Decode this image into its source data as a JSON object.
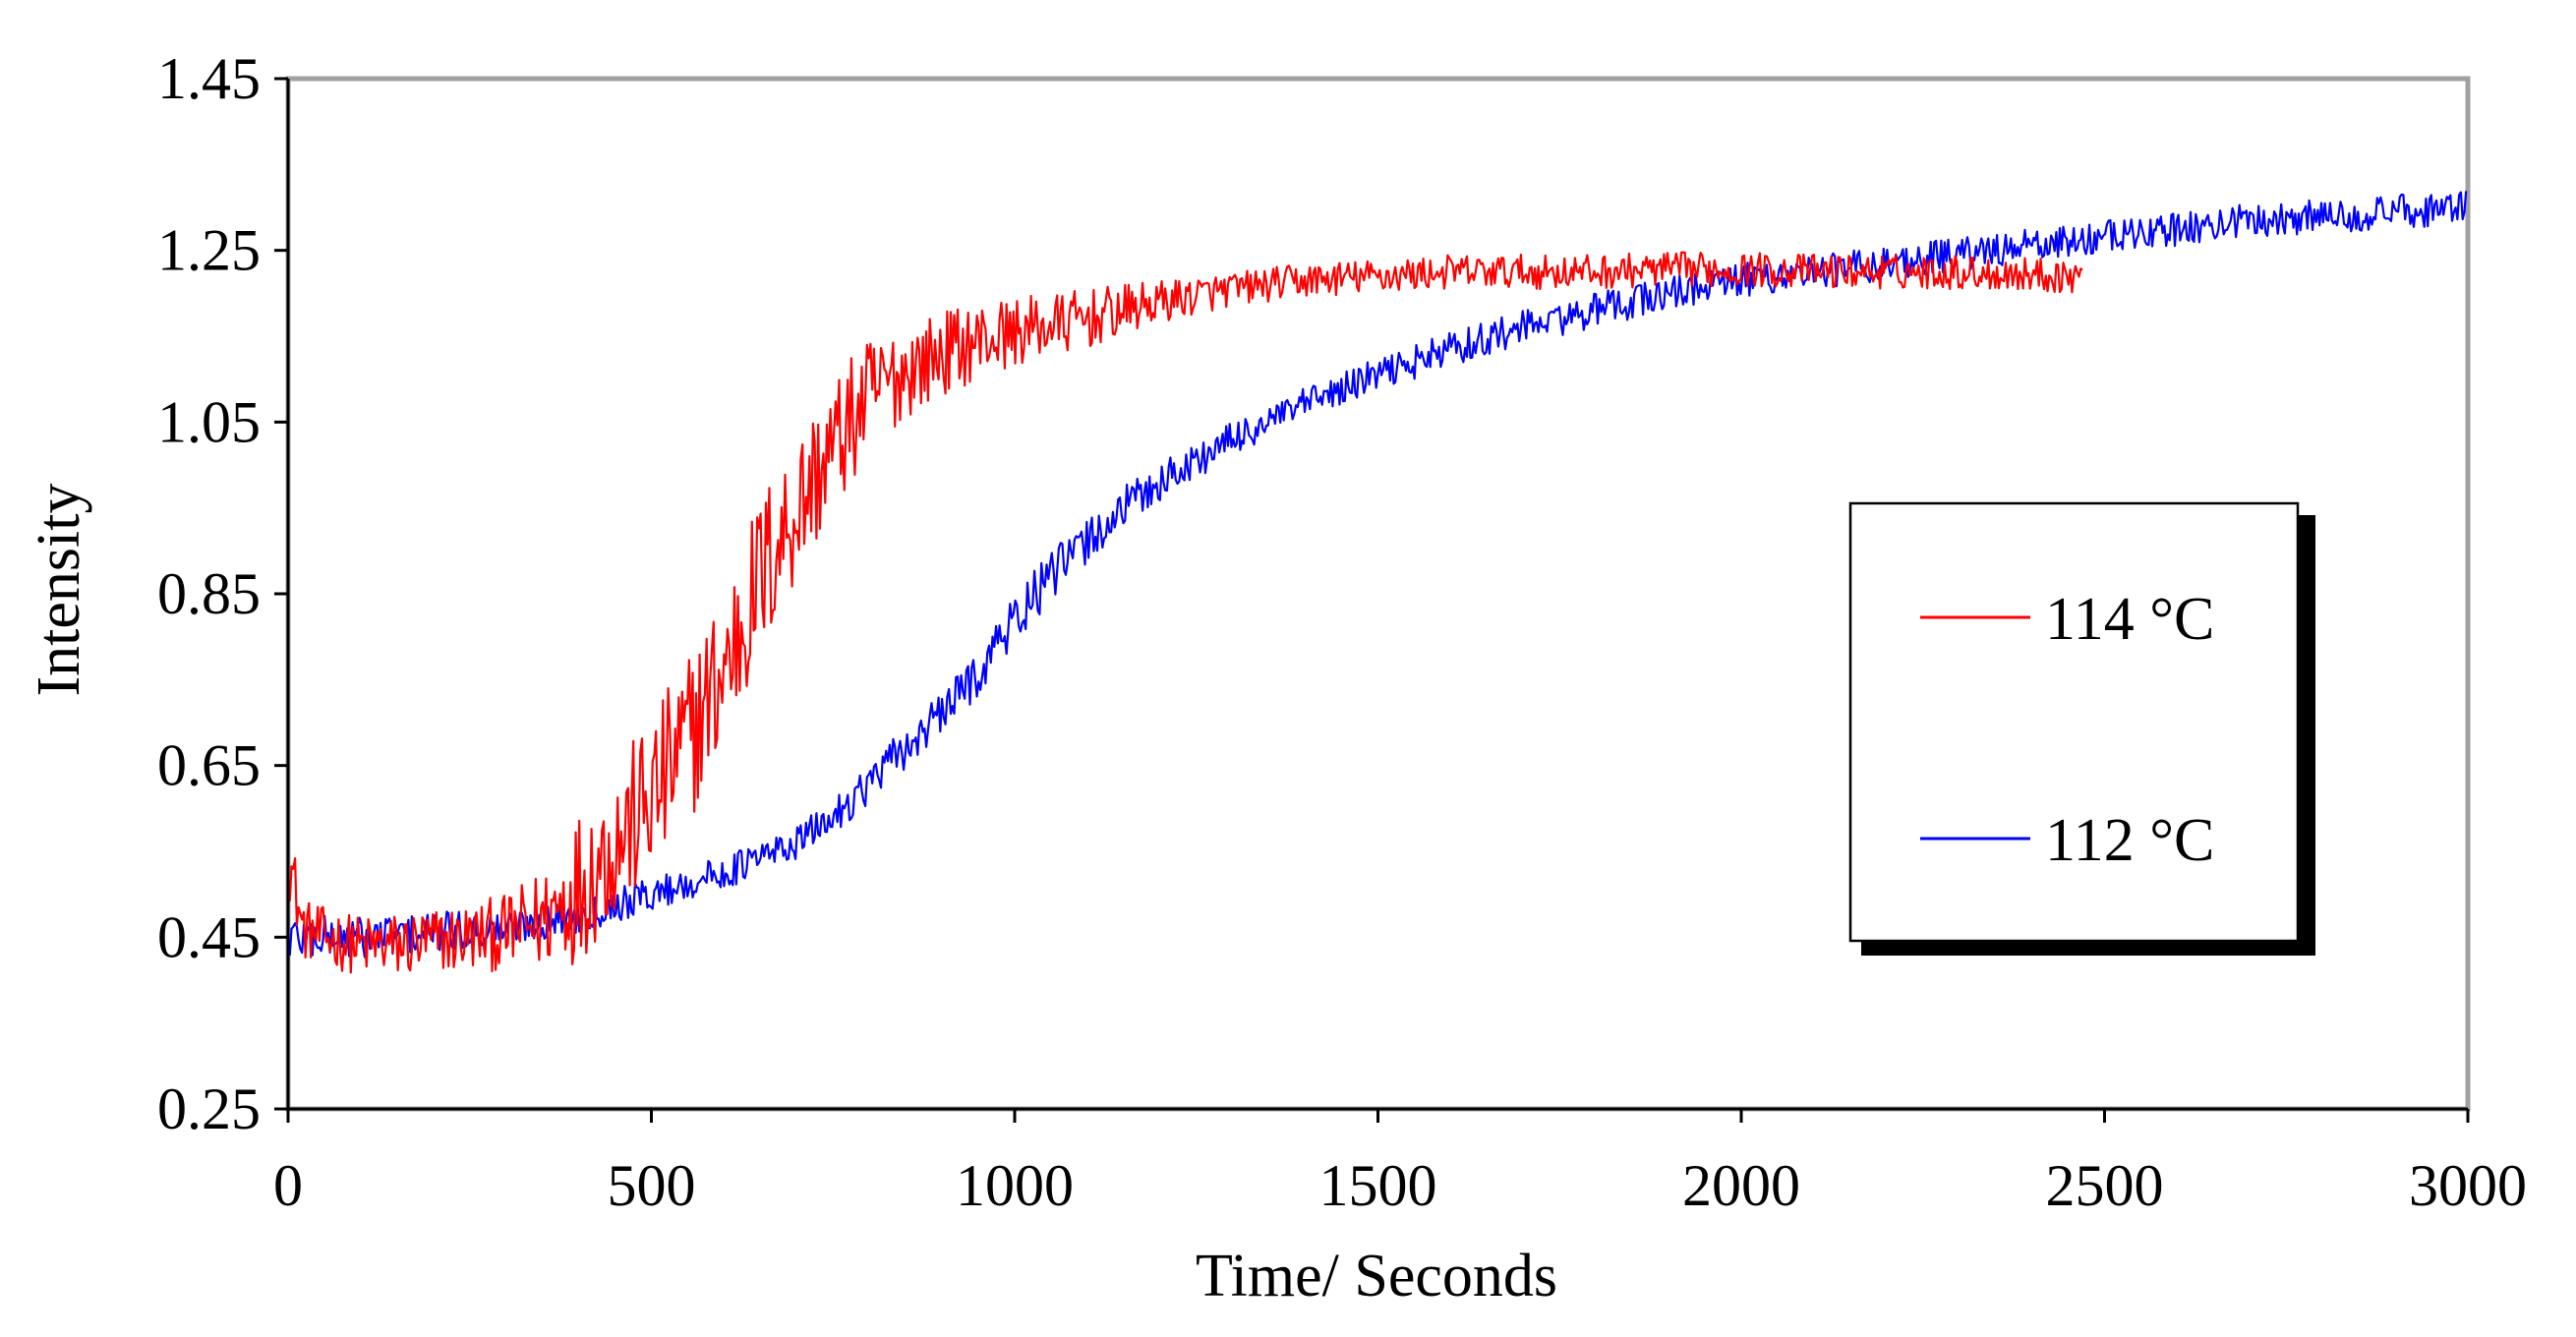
{
  "chart_data": {
    "type": "line",
    "title": "",
    "xlabel": "Time/ Seconds",
    "ylabel": "Intensity",
    "xlim": [
      0,
      3000
    ],
    "ylim": [
      0.25,
      1.45
    ],
    "xticks": [
      0,
      500,
      1000,
      1500,
      2000,
      2500,
      3000
    ],
    "xtick_labels": [
      "0",
      "500",
      "1000",
      "1500",
      "2000",
      "2500",
      "3000"
    ],
    "yticks": [
      0.25,
      0.45,
      0.65,
      0.85,
      1.05,
      1.25,
      1.45
    ],
    "ytick_labels": [
      "0.25",
      "0.45",
      "0.65",
      "0.85",
      "1.05",
      "1.25",
      "1.45"
    ],
    "grid": false,
    "legend_position": "right",
    "series": [
      {
        "name": "114 °C",
        "color": "#ff0000",
        "x": [
          0,
          20,
          50,
          100,
          150,
          200,
          250,
          300,
          350,
          400,
          450,
          500,
          550,
          600,
          650,
          700,
          750,
          800,
          850,
          900,
          950,
          1000,
          1100,
          1200,
          1300,
          1400,
          1500,
          1600,
          1700,
          1800,
          1900,
          2000,
          2100,
          2200,
          2300,
          2400,
          2470
        ],
        "y": [
          0.55,
          0.46,
          0.45,
          0.44,
          0.44,
          0.445,
          0.45,
          0.455,
          0.47,
          0.51,
          0.56,
          0.61,
          0.68,
          0.76,
          0.87,
          0.95,
          1.02,
          1.08,
          1.11,
          1.13,
          1.145,
          1.155,
          1.17,
          1.19,
          1.205,
          1.215,
          1.22,
          1.225,
          1.225,
          1.225,
          1.228,
          1.228,
          1.226,
          1.225,
          1.225,
          1.222,
          1.22
        ],
        "noise": [
          0.05,
          0.035,
          0.035,
          0.035,
          0.04,
          0.04,
          0.04,
          0.045,
          0.06,
          0.09,
          0.09,
          0.1,
          0.1,
          0.1,
          0.1,
          0.09,
          0.08,
          0.07,
          0.055,
          0.05,
          0.045,
          0.04,
          0.035,
          0.025,
          0.02,
          0.02,
          0.02,
          0.02,
          0.02,
          0.02,
          0.02,
          0.02,
          0.02,
          0.02,
          0.02,
          0.02,
          0.02
        ]
      },
      {
        "name": "112 °C",
        "color": "#0000ff",
        "x": [
          0,
          50,
          100,
          200,
          300,
          400,
          500,
          600,
          700,
          750,
          800,
          850,
          900,
          950,
          1000,
          1050,
          1100,
          1150,
          1200,
          1300,
          1400,
          1500,
          1600,
          1700,
          1800,
          1900,
          2000,
          2100,
          2200,
          2300,
          2400,
          2500,
          2600,
          2700,
          2800,
          2900,
          3000
        ],
        "y": [
          0.45,
          0.45,
          0.45,
          0.455,
          0.46,
          0.475,
          0.5,
          0.525,
          0.56,
          0.59,
          0.63,
          0.67,
          0.71,
          0.76,
          0.82,
          0.87,
          0.91,
          0.95,
          0.98,
          1.03,
          1.07,
          1.105,
          1.135,
          1.16,
          1.18,
          1.2,
          1.215,
          1.225,
          1.235,
          1.245,
          1.255,
          1.265,
          1.275,
          1.285,
          1.29,
          1.295,
          1.3
        ],
        "noise": [
          0.03,
          0.025,
          0.025,
          0.025,
          0.02,
          0.02,
          0.02,
          0.02,
          0.02,
          0.02,
          0.025,
          0.025,
          0.025,
          0.03,
          0.03,
          0.03,
          0.03,
          0.025,
          0.025,
          0.02,
          0.02,
          0.02,
          0.02,
          0.02,
          0.02,
          0.02,
          0.02,
          0.02,
          0.02,
          0.02,
          0.02,
          0.02,
          0.02,
          0.02,
          0.02,
          0.02,
          0.02
        ]
      }
    ]
  },
  "legend": {
    "items": [
      {
        "label": "114 °C",
        "color": "#ff0000"
      },
      {
        "label": "112 °C",
        "color": "#0000ff"
      }
    ]
  }
}
